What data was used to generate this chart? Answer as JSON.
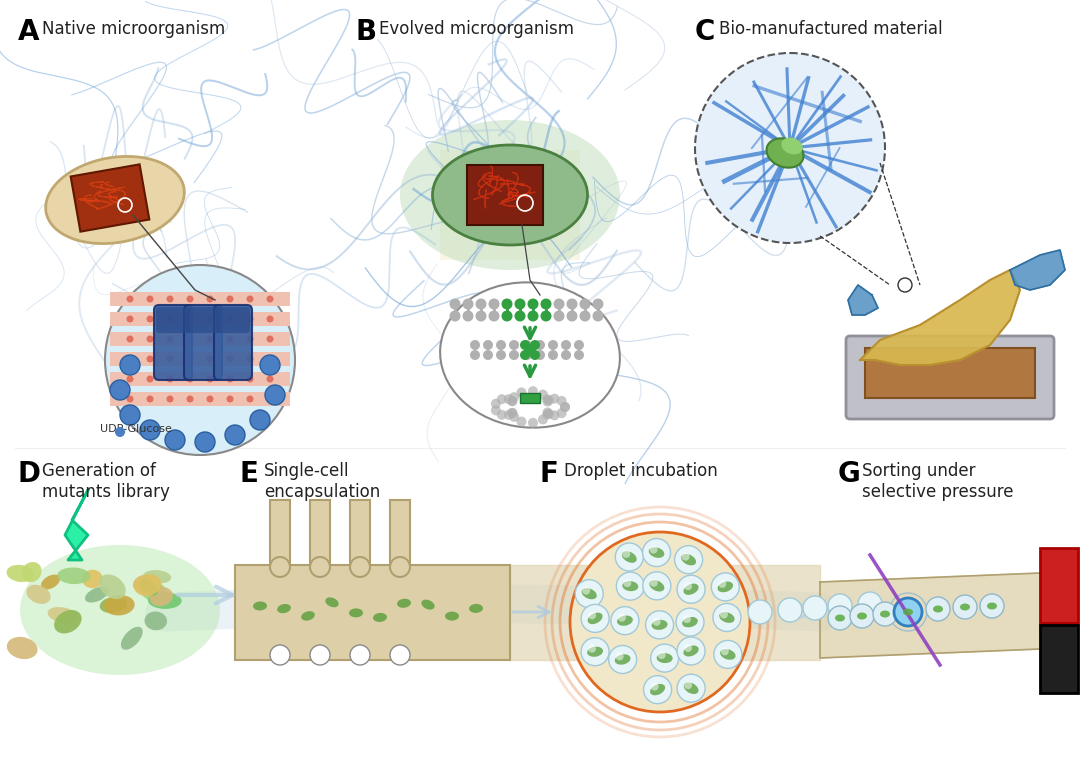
{
  "background_color": "#ffffff",
  "panel_labels": [
    "A",
    "B",
    "C",
    "D",
    "E",
    "F",
    "G"
  ],
  "panel_titles": [
    "Native microorganism",
    "Evolved microorganism",
    "Bio-manufactured material",
    "Generation of\nmutants library",
    "Single-cell\nencapsulation",
    "Droplet incubation",
    "Sorting under\nselective pressure"
  ],
  "panel_label_fontsize": 20,
  "panel_title_fontsize": 12,
  "udp_label": "UDP-Glucose",
  "colors": {
    "bacterium_native": "#e8d5a8",
    "bacterium_evolved": "#8fbb8a",
    "blue_lines": "#6a9fd4",
    "blue_lines_light": "#a0bcd8",
    "green_light": "#c5e0c0",
    "circle_fill": "#d8eef8",
    "circle_stroke": "#888888",
    "blue_dots": "#4a7fc4",
    "red_stripe": "#e07060",
    "stripe_bg": "#f0c0b0",
    "protein_blue": "#3a5fa0",
    "green_arrow": "#2a9a40",
    "lightning": "#20f0a0",
    "microfluidic_bg": "#c8b888",
    "channel_light": "#ddd0a8",
    "droplet_fill": "#c8e0ec",
    "droplet_stroke": "#8ab8d0",
    "laser_purple": "#9040c0",
    "red_collector": "#cc2020",
    "black_collector": "#202020",
    "fiber_blue": "#4080d0",
    "material_yellow": "#d8b850",
    "tray_gray": "#c0c0c8",
    "glove_blue": "#5090c0",
    "green_blob_center": "#70b060",
    "dna_gray": "#b0b0b0",
    "dna_green": "#30a040",
    "flow_arrow": "#b0cce0"
  }
}
